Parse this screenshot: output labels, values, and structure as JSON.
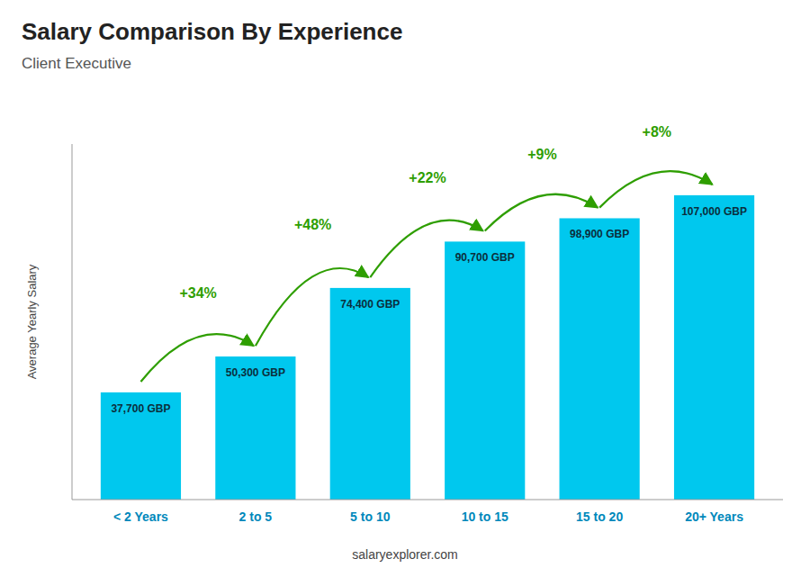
{
  "chart_data": {
    "type": "bar",
    "title": "Salary Comparison By Experience",
    "subtitle": "Client Executive",
    "ylabel": "Average Yearly Salary",
    "footer": "salaryexplorer.com",
    "categories": [
      "< 2 Years",
      "2 to 5",
      "5 to 10",
      "10 to 15",
      "15 to 20",
      "20+ Years"
    ],
    "values": [
      37700,
      50300,
      74400,
      90700,
      98900,
      107000
    ],
    "value_labels": [
      "37,700 GBP",
      "50,300 GBP",
      "74,400 GBP",
      "90,700 GBP",
      "98,900 GBP",
      "107,000 GBP"
    ],
    "data_labels": true,
    "annotations": [
      null,
      "+34%",
      "+48%",
      "+22%",
      "+9%",
      "+8%"
    ],
    "color": "#00c8ee",
    "ylim": [
      0,
      125000
    ],
    "tick_labels": "x",
    "grid": false
  }
}
